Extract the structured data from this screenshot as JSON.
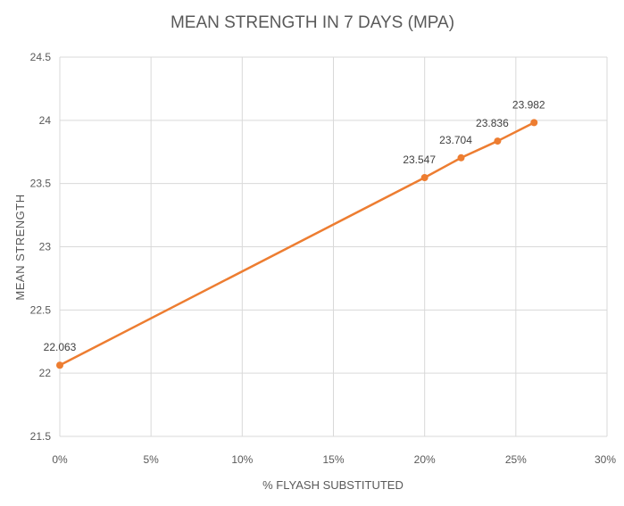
{
  "chart_data": {
    "type": "line",
    "title": "MEAN STRENGTH IN 7 DAYS (MPA)",
    "xlabel": "% FLYASH SUBSTITUTED",
    "ylabel": "MEAN STRENGTH",
    "xlim": [
      0,
      30
    ],
    "ylim": [
      21.5,
      24.5
    ],
    "x_ticks": [
      0,
      5,
      10,
      15,
      20,
      25,
      30
    ],
    "x_tick_labels": [
      "0%",
      "5%",
      "10%",
      "15%",
      "20%",
      "25%",
      "30%"
    ],
    "y_ticks": [
      21.5,
      22,
      22.5,
      23,
      23.5,
      24,
      24.5
    ],
    "y_tick_labels": [
      "21.5",
      "22",
      "22.5",
      "23",
      "23.5",
      "24",
      "24.5"
    ],
    "grid": true,
    "legend": "none",
    "series": [
      {
        "color": "#ed7d31",
        "x": [
          0,
          20,
          22,
          24,
          26
        ],
        "y": [
          22.063,
          23.547,
          23.704,
          23.836,
          23.982
        ],
        "labels": [
          "22.063",
          "23.547",
          "23.704",
          "23.836",
          "23.982"
        ]
      }
    ]
  }
}
